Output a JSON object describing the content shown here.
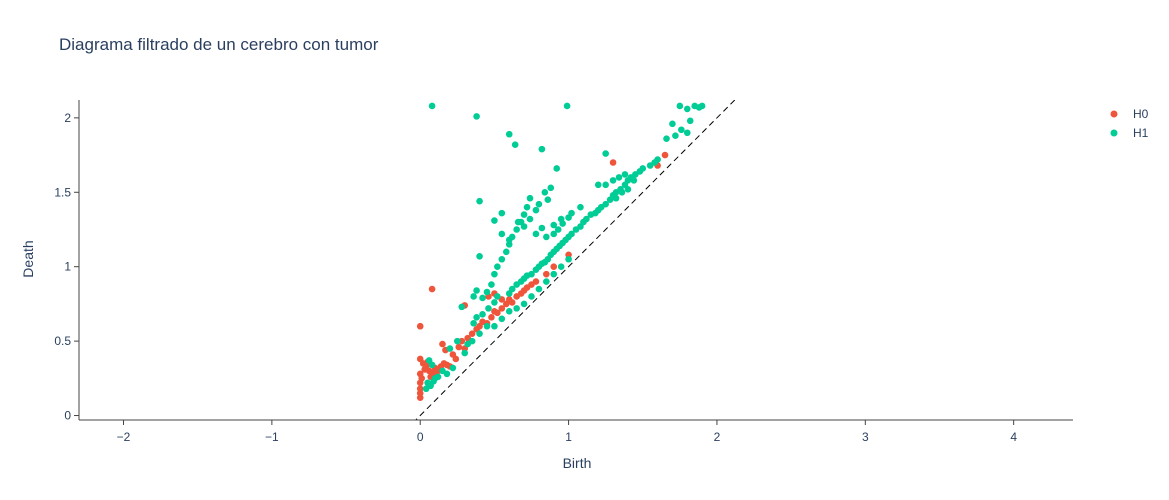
{
  "chart_data": {
    "type": "scatter",
    "title": "Diagrama filtrado de un cerebro con tumor",
    "xlabel": "Birth",
    "ylabel": "Death",
    "xlim": [
      -2.3,
      4.4
    ],
    "ylim": [
      -0.03,
      2.12
    ],
    "xticks": [
      -2,
      -1,
      0,
      1,
      2,
      3,
      4
    ],
    "xtick_labels": [
      "−2",
      "−1",
      "0",
      "1",
      "2",
      "3",
      "4"
    ],
    "yticks": [
      0,
      0.5,
      1,
      1.5,
      2
    ],
    "ytick_labels": [
      "0",
      "0.5",
      "1",
      "1.5",
      "2"
    ],
    "grid": false,
    "legend": "top-right",
    "diagonal": {
      "from": [
        -0.05,
        -0.05
      ],
      "to": [
        2.12,
        2.12
      ],
      "color": "#000000",
      "dash": true
    },
    "series": [
      {
        "name": "H0",
        "color": "#ef553b",
        "points": [
          [
            0.0,
            0.6
          ],
          [
            0.08,
            0.85
          ],
          [
            0.0,
            0.38
          ],
          [
            0.02,
            0.35
          ],
          [
            0.04,
            0.33
          ],
          [
            0.06,
            0.3
          ],
          [
            0.08,
            0.28
          ],
          [
            0.1,
            0.32
          ],
          [
            0.12,
            0.3
          ],
          [
            0.14,
            0.33
          ],
          [
            0.16,
            0.35
          ],
          [
            0.18,
            0.34
          ],
          [
            0.2,
            0.33
          ],
          [
            0.0,
            0.28
          ],
          [
            0.0,
            0.22
          ],
          [
            0.0,
            0.18
          ],
          [
            0.0,
            0.15
          ],
          [
            0.0,
            0.12
          ],
          [
            0.01,
            0.25
          ],
          [
            0.03,
            0.31
          ],
          [
            0.05,
            0.36
          ],
          [
            0.07,
            0.26
          ],
          [
            0.09,
            0.29
          ],
          [
            0.11,
            0.27
          ],
          [
            0.13,
            0.31
          ],
          [
            0.15,
            0.48
          ],
          [
            0.17,
            0.44
          ],
          [
            0.22,
            0.41
          ],
          [
            0.24,
            0.38
          ],
          [
            0.26,
            0.46
          ],
          [
            0.28,
            0.5
          ],
          [
            0.3,
            0.45
          ],
          [
            0.32,
            0.52
          ],
          [
            0.35,
            0.55
          ],
          [
            0.38,
            0.58
          ],
          [
            0.4,
            0.6
          ],
          [
            0.42,
            0.63
          ],
          [
            0.45,
            0.62
          ],
          [
            0.48,
            0.66
          ],
          [
            0.5,
            0.7
          ],
          [
            0.52,
            0.69
          ],
          [
            0.55,
            0.72
          ],
          [
            0.58,
            0.75
          ],
          [
            0.6,
            0.78
          ],
          [
            0.62,
            0.76
          ],
          [
            0.65,
            0.8
          ],
          [
            0.68,
            0.82
          ],
          [
            0.7,
            0.84
          ],
          [
            0.72,
            0.86
          ],
          [
            0.75,
            0.88
          ],
          [
            0.78,
            0.9
          ],
          [
            0.46,
            0.8
          ],
          [
            0.5,
            0.82
          ],
          [
            0.55,
            0.78
          ],
          [
            0.3,
            0.74
          ],
          [
            0.85,
            0.95
          ],
          [
            0.9,
            1.0
          ],
          [
            1.0,
            1.08
          ],
          [
            1.3,
            1.7
          ],
          [
            1.6,
            1.68
          ],
          [
            1.65,
            1.75
          ]
        ]
      },
      {
        "name": "H1",
        "color": "#00cc96",
        "points": [
          [
            0.08,
            2.08
          ],
          [
            0.38,
            2.01
          ],
          [
            0.99,
            2.08
          ],
          [
            0.6,
            1.89
          ],
          [
            0.64,
            1.82
          ],
          [
            0.82,
            1.79
          ],
          [
            0.92,
            1.66
          ],
          [
            1.25,
            1.76
          ],
          [
            0.4,
            1.44
          ],
          [
            0.4,
            1.07
          ],
          [
            1.75,
            2.08
          ],
          [
            1.8,
            2.06
          ],
          [
            1.85,
            2.08
          ],
          [
            1.88,
            2.07
          ],
          [
            1.9,
            2.08
          ],
          [
            1.82,
            1.98
          ],
          [
            1.7,
            1.96
          ],
          [
            1.76,
            1.92
          ],
          [
            1.72,
            1.88
          ],
          [
            1.66,
            1.86
          ],
          [
            1.8,
            1.9
          ],
          [
            0.05,
            0.22
          ],
          [
            0.07,
            0.2
          ],
          [
            0.09,
            0.23
          ],
          [
            0.1,
            0.25
          ],
          [
            0.12,
            0.26
          ],
          [
            0.04,
            0.18
          ],
          [
            0.06,
            0.37
          ],
          [
            0.08,
            0.34
          ],
          [
            0.2,
            0.45
          ],
          [
            0.25,
            0.5
          ],
          [
            0.28,
            0.73
          ],
          [
            0.36,
            0.8
          ],
          [
            0.38,
            0.84
          ],
          [
            0.42,
            0.79
          ],
          [
            0.45,
            0.83
          ],
          [
            0.48,
            0.88
          ],
          [
            0.5,
            0.95
          ],
          [
            0.52,
            1.0
          ],
          [
            0.55,
            1.05
          ],
          [
            0.58,
            1.1
          ],
          [
            0.6,
            1.15
          ],
          [
            0.62,
            1.2
          ],
          [
            0.65,
            1.25
          ],
          [
            0.68,
            1.3
          ],
          [
            0.7,
            1.35
          ],
          [
            0.72,
            1.4
          ],
          [
            0.74,
            1.46
          ],
          [
            0.78,
            1.38
          ],
          [
            0.8,
            1.42
          ],
          [
            0.84,
            1.5
          ],
          [
            0.88,
            1.53
          ],
          [
            0.86,
            1.45
          ],
          [
            0.9,
            1.28
          ],
          [
            0.95,
            1.32
          ],
          [
            1.02,
            1.36
          ],
          [
            1.08,
            1.4
          ],
          [
            0.6,
            0.82
          ],
          [
            0.62,
            0.85
          ],
          [
            0.65,
            0.88
          ],
          [
            0.68,
            0.9
          ],
          [
            0.7,
            0.92
          ],
          [
            0.72,
            0.94
          ],
          [
            0.75,
            0.95
          ],
          [
            0.78,
            0.98
          ],
          [
            0.8,
            1.0
          ],
          [
            0.82,
            1.02
          ],
          [
            0.84,
            1.03
          ],
          [
            0.86,
            1.05
          ],
          [
            0.88,
            1.08
          ],
          [
            0.9,
            1.1
          ],
          [
            0.92,
            1.12
          ],
          [
            0.94,
            1.14
          ],
          [
            0.96,
            1.16
          ],
          [
            0.98,
            1.18
          ],
          [
            1.0,
            1.2
          ],
          [
            1.02,
            1.22
          ],
          [
            1.05,
            1.25
          ],
          [
            1.08,
            1.27
          ],
          [
            1.1,
            1.3
          ],
          [
            1.12,
            1.32
          ],
          [
            1.15,
            1.35
          ],
          [
            1.18,
            1.36
          ],
          [
            1.2,
            1.38
          ],
          [
            1.22,
            1.4
          ],
          [
            1.25,
            1.42
          ],
          [
            1.28,
            1.45
          ],
          [
            1.3,
            1.48
          ],
          [
            1.32,
            1.5
          ],
          [
            1.35,
            1.52
          ],
          [
            1.38,
            1.55
          ],
          [
            1.4,
            1.58
          ],
          [
            1.42,
            1.6
          ],
          [
            1.45,
            1.62
          ],
          [
            1.48,
            1.64
          ],
          [
            1.5,
            1.66
          ],
          [
            1.55,
            1.68
          ],
          [
            1.58,
            1.7
          ],
          [
            1.6,
            1.72
          ],
          [
            1.2,
            1.55
          ],
          [
            1.25,
            1.55
          ],
          [
            1.3,
            1.58
          ],
          [
            1.34,
            1.6
          ],
          [
            1.38,
            1.62
          ],
          [
            1.36,
            1.5
          ],
          [
            1.32,
            1.46
          ],
          [
            1.4,
            1.52
          ],
          [
            1.44,
            1.58
          ],
          [
            0.5,
            0.6
          ],
          [
            0.55,
            0.65
          ],
          [
            0.6,
            0.7
          ],
          [
            0.65,
            0.72
          ],
          [
            0.7,
            0.75
          ],
          [
            0.75,
            0.8
          ],
          [
            0.8,
            0.85
          ],
          [
            0.85,
            0.9
          ],
          [
            0.9,
            0.95
          ],
          [
            0.95,
            1.0
          ],
          [
            1.0,
            1.05
          ],
          [
            0.45,
            0.6
          ],
          [
            0.4,
            0.55
          ],
          [
            0.35,
            0.5
          ],
          [
            0.32,
            0.48
          ],
          [
            0.3,
            0.42
          ],
          [
            0.15,
            0.3
          ],
          [
            0.18,
            0.28
          ],
          [
            0.22,
            0.32
          ],
          [
            0.5,
            1.31
          ],
          [
            0.55,
            1.36
          ],
          [
            0.66,
            1.3
          ],
          [
            0.7,
            1.27
          ],
          [
            0.74,
            1.32
          ],
          [
            0.78,
            1.22
          ],
          [
            0.82,
            1.26
          ],
          [
            0.85,
            1.2
          ],
          [
            0.9,
            1.22
          ],
          [
            0.93,
            1.25
          ],
          [
            0.96,
            1.29
          ],
          [
            1.0,
            1.33
          ],
          [
            0.55,
            1.22
          ],
          [
            0.6,
            1.18
          ],
          [
            0.5,
            0.76
          ],
          [
            0.52,
            0.8
          ],
          [
            0.46,
            0.72
          ],
          [
            0.42,
            0.68
          ],
          [
            0.38,
            0.66
          ],
          [
            0.36,
            0.62
          ]
        ]
      }
    ]
  }
}
